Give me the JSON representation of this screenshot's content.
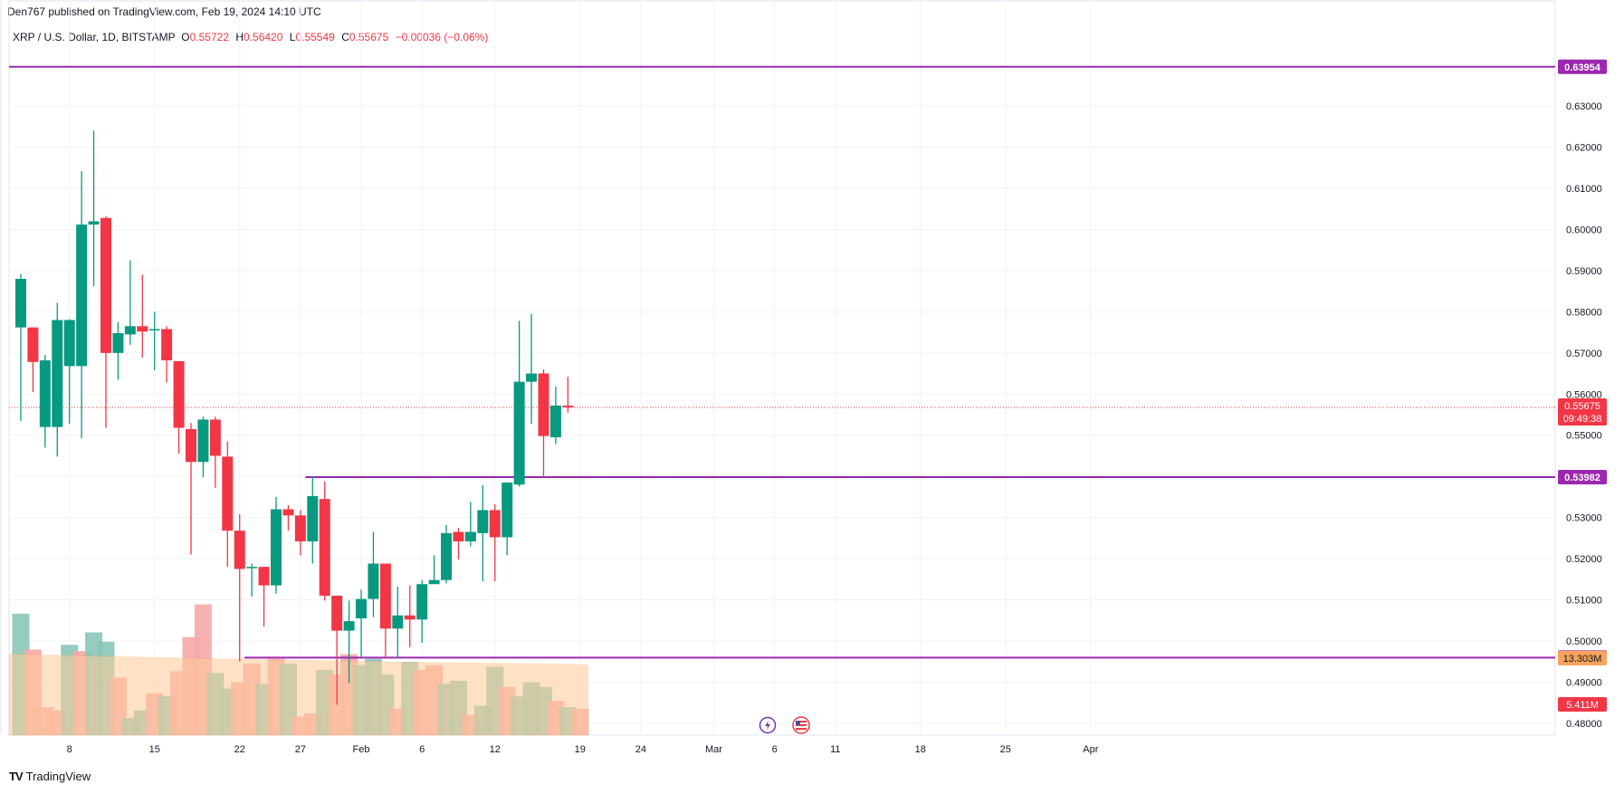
{
  "header": {
    "publisher": "Den767 published on TradingView.com, Feb 19, 2024 14:10 UTC",
    "symbol": "XRP / U.S. Dollar, 1D, BITSTAMP",
    "o_label": "O",
    "o_value": "0.55722",
    "h_label": "H",
    "h_value": "0.56420",
    "l_label": "L",
    "l_value": "0.55549",
    "c_label": "C",
    "c_value": "0.55675",
    "change": "−0.00036 (−0.06%)"
  },
  "footer": {
    "brand": "TradingView",
    "logo_text": "TV"
  },
  "colors": {
    "up": "#089981",
    "down": "#f23645",
    "level_line": "#9c27b0",
    "level_tag": "#9c27b0",
    "volume_up": "#89c7b8",
    "volume_down": "#f7a9a9",
    "volume_ma": "#ffcc99",
    "volume_ma_tag": "#f7a35c",
    "last_price_tag": "#f23645"
  },
  "chart_data": {
    "type": "candlestick",
    "y_ticks": [
      "0.48000",
      "0.49000",
      "0.50000",
      "0.51000",
      "0.52000",
      "0.53000",
      "0.54000",
      "0.55000",
      "0.56000",
      "0.57000",
      "0.58000",
      "0.59000",
      "0.60000",
      "0.61000",
      "0.62000",
      "0.63000"
    ],
    "y_tick_values": [
      0.48,
      0.49,
      0.5,
      0.51,
      0.52,
      0.53,
      0.54,
      0.55,
      0.56,
      0.57,
      0.58,
      0.59,
      0.6,
      0.61,
      0.62,
      0.63
    ],
    "y_range": [
      0.4771,
      0.6505
    ],
    "x_ticks": [
      {
        "label": "8",
        "day": 8
      },
      {
        "label": "15",
        "day": 15
      },
      {
        "label": "22",
        "day": 22
      },
      {
        "label": "27",
        "day": 27
      },
      {
        "label": "Feb",
        "day": 32
      },
      {
        "label": "6",
        "day": 37
      },
      {
        "label": "12",
        "day": 43
      },
      {
        "label": "19",
        "day": 50
      },
      {
        "label": "24",
        "day": 55
      },
      {
        "label": "Mar",
        "day": 61
      },
      {
        "label": "6",
        "day": 66
      },
      {
        "label": "11",
        "day": 71
      },
      {
        "label": "18",
        "day": 78
      },
      {
        "label": "25",
        "day": 85
      },
      {
        "label": "Apr",
        "day": 92
      }
    ],
    "day_note": "day = day of the period starting Jan 1, 2024 (Feb 1 = 32)",
    "candles": [
      {
        "day": 4,
        "o": 0.5762,
        "h": 0.5892,
        "l": 0.5535,
        "c": 0.588
      },
      {
        "day": 5,
        "o": 0.5762,
        "h": 0.5762,
        "l": 0.5605,
        "c": 0.5678
      },
      {
        "day": 6,
        "o": 0.552,
        "h": 0.5695,
        "l": 0.547,
        "c": 0.5682
      },
      {
        "day": 7,
        "o": 0.552,
        "h": 0.5822,
        "l": 0.5448,
        "c": 0.578
      },
      {
        "day": 8,
        "o": 0.5668,
        "h": 0.5782,
        "l": 0.5528,
        "c": 0.578
      },
      {
        "day": 9,
        "o": 0.5668,
        "h": 0.6142,
        "l": 0.5492,
        "c": 0.6012
      },
      {
        "day": 10,
        "o": 0.6012,
        "h": 0.624,
        "l": 0.5862,
        "c": 0.602
      },
      {
        "day": 11,
        "o": 0.6028,
        "h": 0.6032,
        "l": 0.5518,
        "c": 0.57
      },
      {
        "day": 12,
        "o": 0.57,
        "h": 0.5775,
        "l": 0.5635,
        "c": 0.5748
      },
      {
        "day": 13,
        "o": 0.5745,
        "h": 0.5925,
        "l": 0.572,
        "c": 0.5765
      },
      {
        "day": 14,
        "o": 0.5765,
        "h": 0.589,
        "l": 0.5688,
        "c": 0.5752
      },
      {
        "day": 15,
        "o": 0.5758,
        "h": 0.58,
        "l": 0.5658,
        "c": 0.5758
      },
      {
        "day": 16,
        "o": 0.5758,
        "h": 0.5765,
        "l": 0.5628,
        "c": 0.5682
      },
      {
        "day": 17,
        "o": 0.568,
        "h": 0.568,
        "l": 0.5455,
        "c": 0.5518
      },
      {
        "day": 18,
        "o": 0.5515,
        "h": 0.553,
        "l": 0.521,
        "c": 0.5435
      },
      {
        "day": 19,
        "o": 0.5435,
        "h": 0.5545,
        "l": 0.5398,
        "c": 0.5538
      },
      {
        "day": 20,
        "o": 0.5538,
        "h": 0.5545,
        "l": 0.5372,
        "c": 0.545
      },
      {
        "day": 21,
        "o": 0.5448,
        "h": 0.5485,
        "l": 0.518,
        "c": 0.5268
      },
      {
        "day": 22,
        "o": 0.5268,
        "h": 0.5308,
        "l": 0.495,
        "c": 0.5175
      },
      {
        "day": 23,
        "o": 0.518,
        "h": 0.5188,
        "l": 0.5108,
        "c": 0.518
      },
      {
        "day": 24,
        "o": 0.518,
        "h": 0.518,
        "l": 0.5035,
        "c": 0.5135
      },
      {
        "day": 25,
        "o": 0.5135,
        "h": 0.535,
        "l": 0.5115,
        "c": 0.532
      },
      {
        "day": 26,
        "o": 0.532,
        "h": 0.533,
        "l": 0.5268,
        "c": 0.5305
      },
      {
        "day": 27,
        "o": 0.5305,
        "h": 0.5318,
        "l": 0.5208,
        "c": 0.5242
      },
      {
        "day": 28,
        "o": 0.5242,
        "h": 0.54,
        "l": 0.5188,
        "c": 0.5352
      },
      {
        "day": 29,
        "o": 0.5345,
        "h": 0.5388,
        "l": 0.5098,
        "c": 0.511
      },
      {
        "day": 30,
        "o": 0.511,
        "h": 0.5102,
        "l": 0.4845,
        "c": 0.5025
      },
      {
        "day": 31,
        "o": 0.5025,
        "h": 0.5098,
        "l": 0.4898,
        "c": 0.5048
      },
      {
        "day": 32,
        "o": 0.5055,
        "h": 0.5125,
        "l": 0.4962,
        "c": 0.5102
      },
      {
        "day": 33,
        "o": 0.5102,
        "h": 0.5265,
        "l": 0.5058,
        "c": 0.5188
      },
      {
        "day": 34,
        "o": 0.5188,
        "h": 0.5188,
        "l": 0.4962,
        "c": 0.503
      },
      {
        "day": 35,
        "o": 0.503,
        "h": 0.5132,
        "l": 0.4958,
        "c": 0.5062
      },
      {
        "day": 36,
        "o": 0.5062,
        "h": 0.5135,
        "l": 0.4985,
        "c": 0.5052
      },
      {
        "day": 37,
        "o": 0.5052,
        "h": 0.5148,
        "l": 0.4995,
        "c": 0.5138
      },
      {
        "day": 38,
        "o": 0.5138,
        "h": 0.5208,
        "l": 0.514,
        "c": 0.5148
      },
      {
        "day": 39,
        "o": 0.5148,
        "h": 0.5282,
        "l": 0.514,
        "c": 0.5262
      },
      {
        "day": 40,
        "o": 0.5265,
        "h": 0.5275,
        "l": 0.5198,
        "c": 0.5242
      },
      {
        "day": 41,
        "o": 0.5242,
        "h": 0.5338,
        "l": 0.523,
        "c": 0.5265
      },
      {
        "day": 42,
        "o": 0.5262,
        "h": 0.5378,
        "l": 0.5145,
        "c": 0.5318
      },
      {
        "day": 43,
        "o": 0.5318,
        "h": 0.5332,
        "l": 0.5145,
        "c": 0.5252
      },
      {
        "day": 44,
        "o": 0.5252,
        "h": 0.5385,
        "l": 0.5208,
        "c": 0.5385
      },
      {
        "day": 45,
        "o": 0.538,
        "h": 0.5778,
        "l": 0.5375,
        "c": 0.563
      },
      {
        "day": 46,
        "o": 0.563,
        "h": 0.5795,
        "l": 0.5528,
        "c": 0.565
      },
      {
        "day": 47,
        "o": 0.565,
        "h": 0.566,
        "l": 0.5398,
        "c": 0.5498
      },
      {
        "day": 48,
        "o": 0.5495,
        "h": 0.5618,
        "l": 0.5478,
        "c": 0.5572
      },
      {
        "day": 49,
        "o": 0.5572,
        "h": 0.5642,
        "l": 0.5555,
        "c": 0.5568
      }
    ],
    "volume": {
      "note": "relative volume bars (0-1 scale of volume pane height)",
      "bars": [
        {
          "day": 4,
          "v": 0.78,
          "dir": "up"
        },
        {
          "day": 5,
          "v": 0.55,
          "dir": "down"
        },
        {
          "day": 6,
          "v": 0.18,
          "dir": "down"
        },
        {
          "day": 7,
          "v": 0.16,
          "dir": "down"
        },
        {
          "day": 8,
          "v": 0.58,
          "dir": "up"
        },
        {
          "day": 9,
          "v": 0.54,
          "dir": "down"
        },
        {
          "day": 10,
          "v": 0.66,
          "dir": "up"
        },
        {
          "day": 11,
          "v": 0.6,
          "dir": "up"
        },
        {
          "day": 12,
          "v": 0.37,
          "dir": "down"
        },
        {
          "day": 13,
          "v": 0.11,
          "dir": "up"
        },
        {
          "day": 14,
          "v": 0.16,
          "dir": "up"
        },
        {
          "day": 15,
          "v": 0.27,
          "dir": "down"
        },
        {
          "day": 16,
          "v": 0.25,
          "dir": "up"
        },
        {
          "day": 17,
          "v": 0.41,
          "dir": "down"
        },
        {
          "day": 18,
          "v": 0.63,
          "dir": "down"
        },
        {
          "day": 19,
          "v": 0.84,
          "dir": "down"
        },
        {
          "day": 20,
          "v": 0.4,
          "dir": "up"
        },
        {
          "day": 21,
          "v": 0.3,
          "dir": "up"
        },
        {
          "day": 22,
          "v": 0.34,
          "dir": "down"
        },
        {
          "day": 23,
          "v": 0.46,
          "dir": "down"
        },
        {
          "day": 24,
          "v": 0.33,
          "dir": "up"
        },
        {
          "day": 25,
          "v": 0.49,
          "dir": "down"
        },
        {
          "day": 26,
          "v": 0.46,
          "dir": "up"
        },
        {
          "day": 27,
          "v": 0.12,
          "dir": "down"
        },
        {
          "day": 28,
          "v": 0.14,
          "dir": "down"
        },
        {
          "day": 29,
          "v": 0.42,
          "dir": "up"
        },
        {
          "day": 30,
          "v": 0.39,
          "dir": "down"
        },
        {
          "day": 31,
          "v": 0.52,
          "dir": "down"
        },
        {
          "day": 32,
          "v": 0.45,
          "dir": "up"
        },
        {
          "day": 33,
          "v": 0.49,
          "dir": "up"
        },
        {
          "day": 34,
          "v": 0.39,
          "dir": "up"
        },
        {
          "day": 35,
          "v": 0.17,
          "dir": "down"
        },
        {
          "day": 36,
          "v": 0.47,
          "dir": "up"
        },
        {
          "day": 37,
          "v": 0.42,
          "dir": "down"
        },
        {
          "day": 38,
          "v": 0.45,
          "dir": "down"
        },
        {
          "day": 39,
          "v": 0.33,
          "dir": "up"
        },
        {
          "day": 40,
          "v": 0.35,
          "dir": "up"
        },
        {
          "day": 41,
          "v": 0.13,
          "dir": "down"
        },
        {
          "day": 42,
          "v": 0.19,
          "dir": "up"
        },
        {
          "day": 43,
          "v": 0.44,
          "dir": "up"
        },
        {
          "day": 44,
          "v": 0.31,
          "dir": "down"
        },
        {
          "day": 45,
          "v": 0.25,
          "dir": "up"
        },
        {
          "day": 46,
          "v": 0.34,
          "dir": "up"
        },
        {
          "day": 47,
          "v": 0.31,
          "dir": "up"
        },
        {
          "day": 48,
          "v": 0.22,
          "dir": "down"
        },
        {
          "day": 49,
          "v": 0.18,
          "dir": "up"
        },
        {
          "day": 50,
          "v": 0.17,
          "dir": "down"
        }
      ],
      "ma_level": 0.52,
      "ma_label": "13.303M",
      "last_label": "5.411M"
    },
    "levels": [
      {
        "value": 0.63954,
        "label": "0.63954",
        "from_day": 3
      },
      {
        "value": 0.53982,
        "label": "0.53982",
        "from_day": 28
      },
      {
        "value": 0.49594,
        "label": "0.49594",
        "from_day": 23
      }
    ],
    "last_price": {
      "value": 0.55675,
      "label": "0.55675",
      "countdown": "09:49:38"
    }
  }
}
